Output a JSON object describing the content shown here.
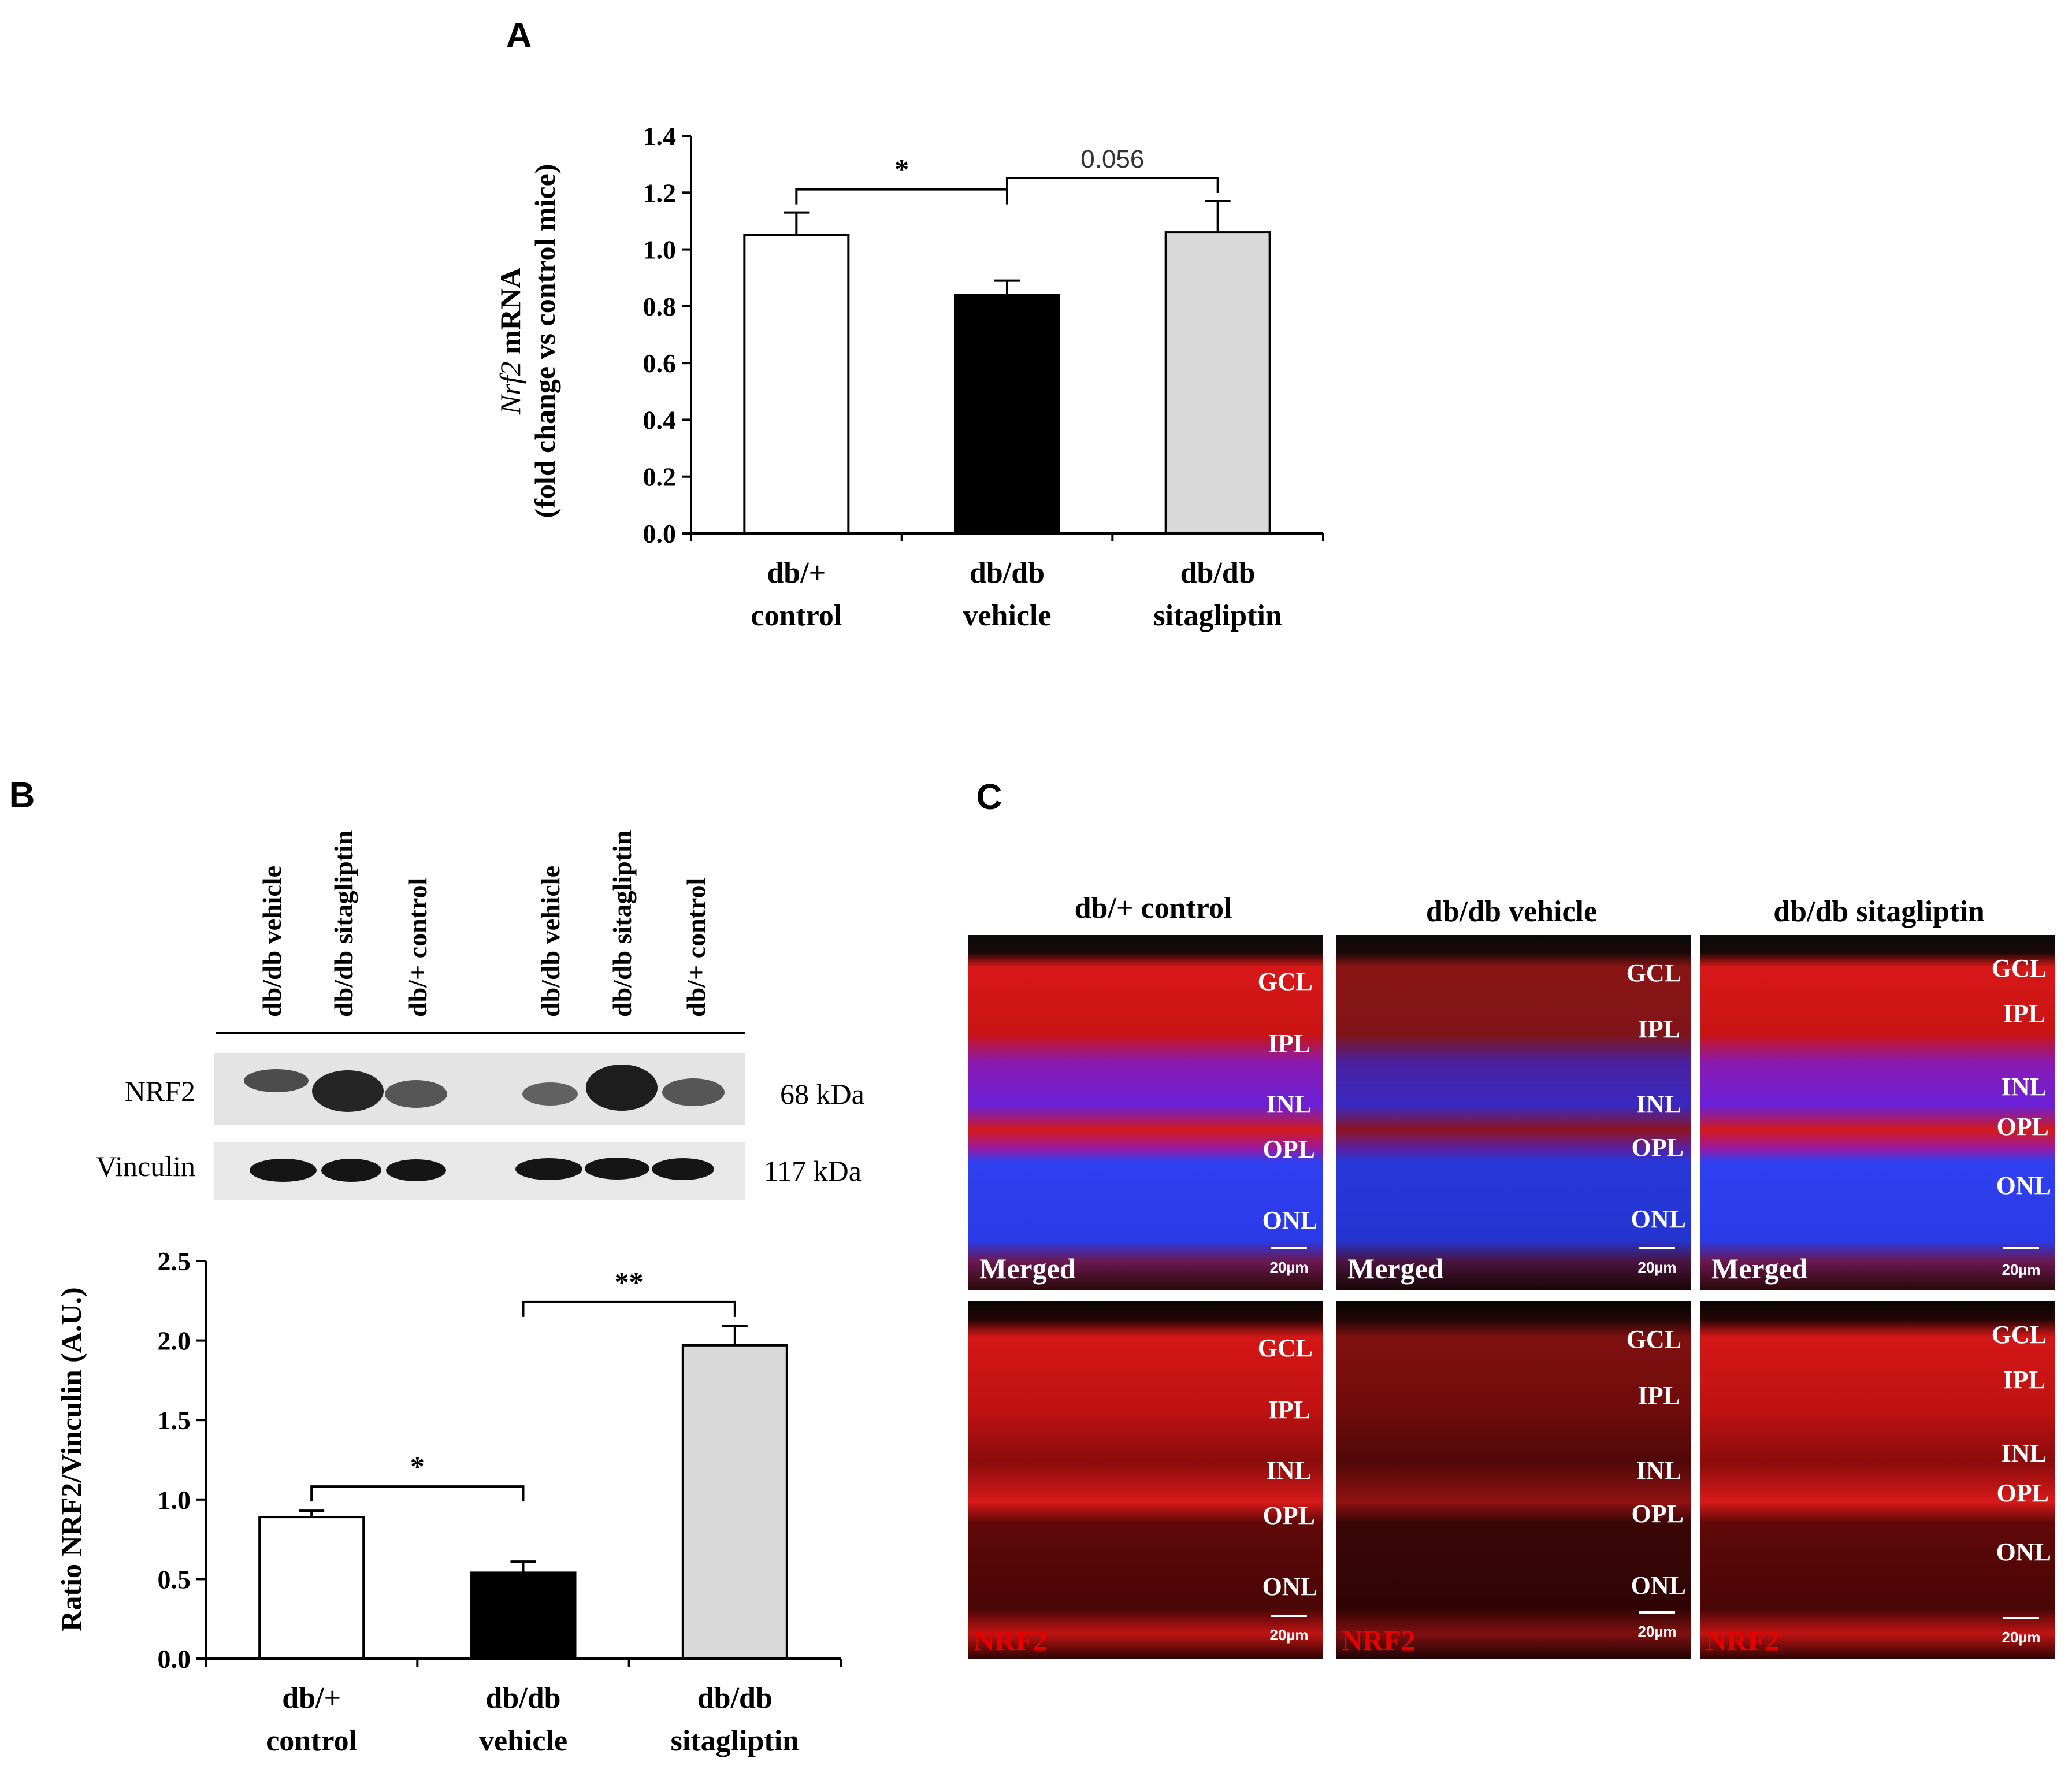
{
  "colors": {
    "control": "#ffffff",
    "vehicle": "#000000",
    "sitagliptin": "#d9d9d9",
    "nrf2_red": "#e60000",
    "nuclei_blue": "#2f3fff"
  },
  "panel_a": {
    "letter": "A",
    "ylabel_italic": "Nrf2",
    "ylabel_rest": " mRNA",
    "ylabel_line2": "(fold change vs control mice)"
  },
  "panel_b": {
    "letter": "B",
    "blot": {
      "lanes": [
        "db/db vehicle",
        "db/db sitagliptin",
        "db/+ control",
        "db/db vehicle",
        "db/db sitagliptin",
        "db/+ control"
      ],
      "rows": [
        {
          "label": "NRF2",
          "kda": "68 kDa"
        },
        {
          "label": "Vinculin",
          "kda": "117 kDa"
        }
      ]
    },
    "ylabel": "Ratio NRF2/Vinculin (A.U.)"
  },
  "panel_c": {
    "letter": "C",
    "columns": [
      "db/+ control",
      "db/db vehicle",
      "db/db sitagliptin"
    ],
    "layer_labels": [
      "GCL",
      "IPL",
      "INL",
      "OPL",
      "ONL"
    ],
    "scale_bar": "20µm",
    "row_labels": [
      "Merged",
      "NRF2"
    ]
  },
  "chart_data": [
    {
      "type": "bar",
      "panel": "A",
      "categories": [
        [
          "db/+",
          "control"
        ],
        [
          "db/db",
          "vehicle"
        ],
        [
          "db/db",
          "sitagliptin"
        ]
      ],
      "values": [
        1.05,
        0.84,
        1.06
      ],
      "errors": [
        0.08,
        0.05,
        0.11
      ],
      "ylim": [
        0,
        1.4
      ],
      "yticks": [
        "0.0",
        "0.2",
        "0.4",
        "0.6",
        "0.8",
        "1.0",
        "1.2",
        "1.4"
      ],
      "ylabel": "Nrf2 mRNA (fold change vs control mice)",
      "annotations": [
        {
          "from": 0,
          "to": 1,
          "text": "*"
        },
        {
          "from": 1,
          "to": 2,
          "text": "0.056"
        }
      ]
    },
    {
      "type": "bar",
      "panel": "B",
      "categories": [
        [
          "db/+",
          "control"
        ],
        [
          "db/db",
          "vehicle"
        ],
        [
          "db/db",
          "sitagliptin"
        ]
      ],
      "values": [
        0.89,
        0.54,
        1.97
      ],
      "errors": [
        0.04,
        0.07,
        0.12
      ],
      "ylim": [
        0,
        2.5
      ],
      "yticks": [
        "0.0",
        "0.5",
        "1.0",
        "1.5",
        "2.0",
        "2.5"
      ],
      "ylabel": "Ratio NRF2/Vinculin (A.U.)",
      "annotations": [
        {
          "from": 0,
          "to": 1,
          "text": "*"
        },
        {
          "from": 1,
          "to": 2,
          "text": "**"
        }
      ]
    }
  ]
}
